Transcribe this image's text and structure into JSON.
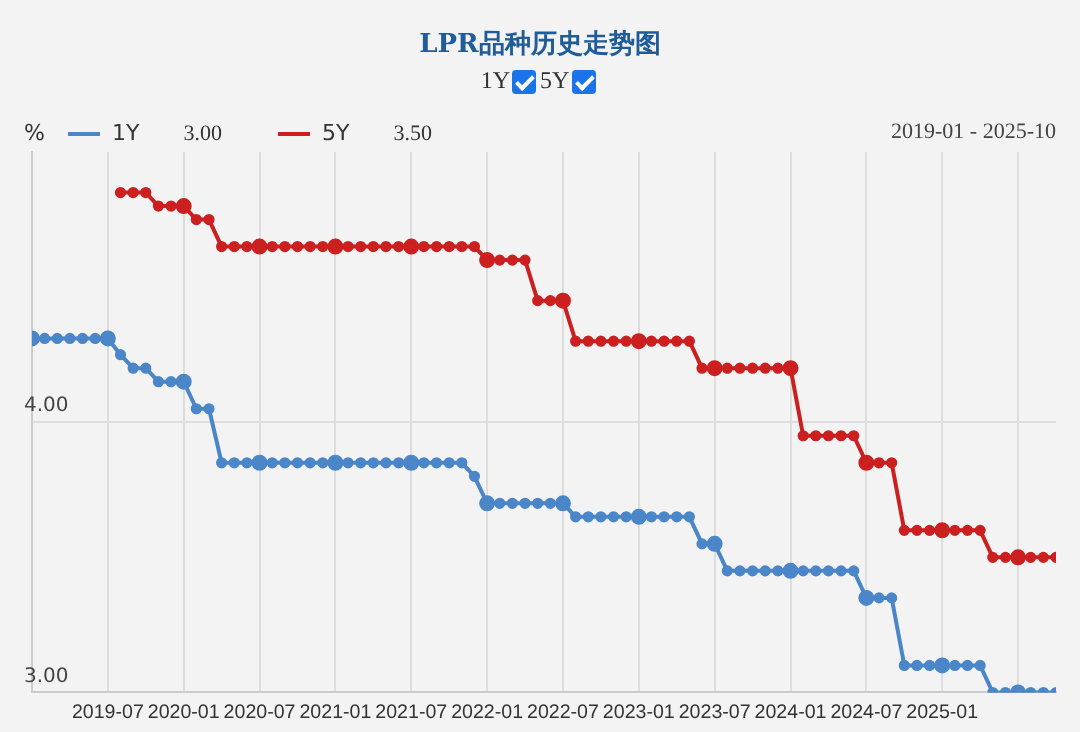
{
  "chart_data": {
    "type": "line",
    "title": "LPR品种历史走势图",
    "ylabel": "%",
    "annotations": [
      "3.00",
      "3.50",
      "2019-01 - 2025-10"
    ],
    "x": [
      "2019-01",
      "2019-02",
      "2019-03",
      "2019-04",
      "2019-05",
      "2019-06",
      "2019-07",
      "2019-08",
      "2019-09",
      "2019-10",
      "2019-11",
      "2019-12",
      "2020-01",
      "2020-02",
      "2020-03",
      "2020-04",
      "2020-05",
      "2020-06",
      "2020-07",
      "2020-08",
      "2020-09",
      "2020-10",
      "2020-11",
      "2020-12",
      "2021-01",
      "2021-02",
      "2021-03",
      "2021-04",
      "2021-05",
      "2021-06",
      "2021-07",
      "2021-08",
      "2021-09",
      "2021-10",
      "2021-11",
      "2021-12",
      "2022-01",
      "2022-02",
      "2022-03",
      "2022-04",
      "2022-05",
      "2022-06",
      "2022-07",
      "2022-08",
      "2022-09",
      "2022-10",
      "2022-11",
      "2022-12",
      "2023-01",
      "2023-02",
      "2023-03",
      "2023-04",
      "2023-05",
      "2023-06",
      "2023-07",
      "2023-08",
      "2023-09",
      "2023-10",
      "2023-11",
      "2023-12",
      "2024-01",
      "2024-02",
      "2024-03",
      "2024-04",
      "2024-05",
      "2024-06",
      "2024-07",
      "2024-08",
      "2024-09",
      "2024-10",
      "2024-11",
      "2024-12",
      "2025-01",
      "2025-02",
      "2025-03",
      "2025-04",
      "2025-05",
      "2025-06",
      "2025-07",
      "2025-08",
      "2025-09",
      "2025-10"
    ],
    "series": [
      {
        "name": "1Y",
        "color": "#4a86c8",
        "values": [
          4.31,
          4.31,
          4.31,
          4.31,
          4.31,
          4.31,
          4.31,
          4.25,
          4.2,
          4.2,
          4.15,
          4.15,
          4.15,
          4.05,
          4.05,
          3.85,
          3.85,
          3.85,
          3.85,
          3.85,
          3.85,
          3.85,
          3.85,
          3.85,
          3.85,
          3.85,
          3.85,
          3.85,
          3.85,
          3.85,
          3.85,
          3.85,
          3.85,
          3.85,
          3.85,
          3.8,
          3.7,
          3.7,
          3.7,
          3.7,
          3.7,
          3.7,
          3.7,
          3.65,
          3.65,
          3.65,
          3.65,
          3.65,
          3.65,
          3.65,
          3.65,
          3.65,
          3.65,
          3.55,
          3.55,
          3.45,
          3.45,
          3.45,
          3.45,
          3.45,
          3.45,
          3.45,
          3.45,
          3.45,
          3.45,
          3.45,
          3.35,
          3.35,
          3.35,
          3.1,
          3.1,
          3.1,
          3.1,
          3.1,
          3.1,
          3.1,
          3.0,
          3.0,
          3.0,
          3.0,
          3.0,
          3.0
        ]
      },
      {
        "name": "5Y",
        "color": "#cc1f1f",
        "values": [
          null,
          null,
          null,
          null,
          null,
          null,
          null,
          4.85,
          4.85,
          4.85,
          4.8,
          4.8,
          4.8,
          4.75,
          4.75,
          4.65,
          4.65,
          4.65,
          4.65,
          4.65,
          4.65,
          4.65,
          4.65,
          4.65,
          4.65,
          4.65,
          4.65,
          4.65,
          4.65,
          4.65,
          4.65,
          4.65,
          4.65,
          4.65,
          4.65,
          4.65,
          4.6,
          4.6,
          4.6,
          4.6,
          4.45,
          4.45,
          4.45,
          4.3,
          4.3,
          4.3,
          4.3,
          4.3,
          4.3,
          4.3,
          4.3,
          4.3,
          4.3,
          4.2,
          4.2,
          4.2,
          4.2,
          4.2,
          4.2,
          4.2,
          4.2,
          3.95,
          3.95,
          3.95,
          3.95,
          3.95,
          3.85,
          3.85,
          3.85,
          3.6,
          3.6,
          3.6,
          3.6,
          3.6,
          3.6,
          3.6,
          3.5,
          3.5,
          3.5,
          3.5,
          3.5,
          3.5
        ]
      }
    ],
    "xlim": [
      "2019-01",
      "2025-10"
    ],
    "xticks": [
      {
        "value": "2019-01",
        "label": null
      },
      "2019-07",
      "2020-01",
      "2020-07",
      "2021-01",
      "2021-07",
      "2022-01",
      "2022-07",
      "2023-01",
      "2023-07",
      "2024-01",
      "2024-07",
      "2025-01",
      {
        "value": "2025-07",
        "label": null
      }
    ],
    "ylim": [
      3,
      5
    ],
    "yticks": [
      {
        "value": 3,
        "label": "3.00"
      },
      {
        "value": 4,
        "label": "4.00"
      }
    ],
    "grid": true,
    "legend": "top left",
    "marker": "circle",
    "line_style": "solid"
  }
}
